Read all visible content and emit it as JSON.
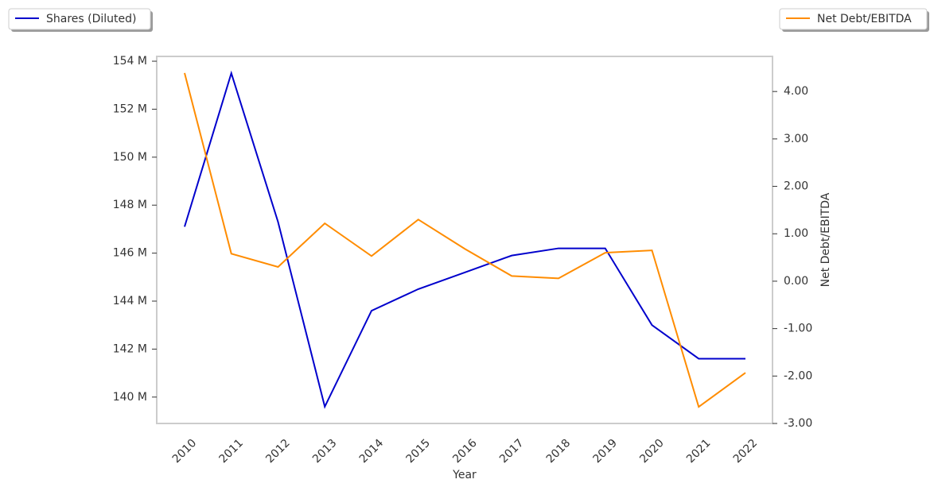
{
  "chart_data": {
    "type": "line",
    "x_label": "Year",
    "y2_label": "Net Debt/EBITDA",
    "categories": [
      "2010",
      "2011",
      "2012",
      "2013",
      "2014",
      "2015",
      "2016",
      "2017",
      "2018",
      "2019",
      "2020",
      "2021",
      "2022"
    ],
    "series": [
      {
        "name": "Shares (Diluted)",
        "color": "#0000cc",
        "axis": "y",
        "values": [
          147.1,
          153.5,
          147.3,
          139.6,
          143.6,
          144.5,
          145.2,
          145.9,
          146.2,
          146.2,
          143.0,
          141.6,
          141.6
        ]
      },
      {
        "name": "Net Debt/EBITDA",
        "color": "#ff8c00",
        "axis": "y2",
        "values": [
          4.39,
          0.58,
          0.3,
          1.22,
          0.53,
          1.3,
          0.68,
          0.11,
          0.06,
          0.6,
          0.65,
          -2.65,
          -1.93
        ]
      }
    ],
    "ylim": [
      138.9,
      154.2
    ],
    "yticks": [
      {
        "value": 140,
        "label": "140 M"
      },
      {
        "value": 142,
        "label": "142 M"
      },
      {
        "value": 144,
        "label": "144 M"
      },
      {
        "value": 146,
        "label": "146 M"
      },
      {
        "value": 148,
        "label": "148 M"
      },
      {
        "value": 150,
        "label": "150 M"
      },
      {
        "value": 152,
        "label": "152 M"
      },
      {
        "value": 154,
        "label": "154 M"
      }
    ],
    "y2lim": [
      -3,
      4.74
    ],
    "y2ticks": [
      {
        "value": -3,
        "label": "-3.00"
      },
      {
        "value": -2,
        "label": "-2.00"
      },
      {
        "value": -1,
        "label": "-1.00"
      },
      {
        "value": 0,
        "label": "0.00"
      },
      {
        "value": 1,
        "label": "1.00"
      },
      {
        "value": 2,
        "label": "2.00"
      },
      {
        "value": 3,
        "label": "3.00"
      },
      {
        "value": 4,
        "label": "4.00"
      }
    ],
    "grid": false
  }
}
